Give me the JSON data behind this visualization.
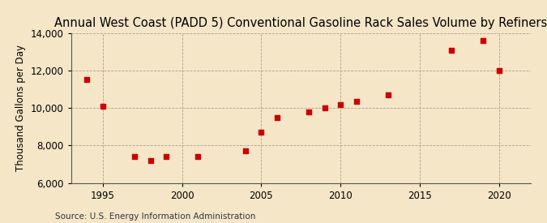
{
  "title": "Annual West Coast (PADD 5) Conventional Gasoline Rack Sales Volume by Refiners",
  "ylabel": "Thousand Gallons per Day",
  "source": "Source: U.S. Energy Information Administration",
  "background_color": "#f5e6c8",
  "marker_color": "#cc0000",
  "years": [
    1994,
    1995,
    1997,
    1998,
    1999,
    2001,
    2004,
    2005,
    2006,
    2008,
    2009,
    2010,
    2011,
    2013,
    2017,
    2019,
    2020
  ],
  "values": [
    11550,
    10100,
    7400,
    7200,
    7400,
    7400,
    7700,
    8700,
    9500,
    9800,
    10000,
    10200,
    10350,
    10700,
    13100,
    13600,
    12000
  ],
  "xlim": [
    1993,
    2022
  ],
  "ylim": [
    6000,
    14000
  ],
  "yticks": [
    6000,
    8000,
    10000,
    12000,
    14000
  ],
  "xticks": [
    1995,
    2000,
    2005,
    2010,
    2015,
    2020
  ],
  "title_fontsize": 10.5,
  "label_fontsize": 8.5,
  "source_fontsize": 7.5
}
